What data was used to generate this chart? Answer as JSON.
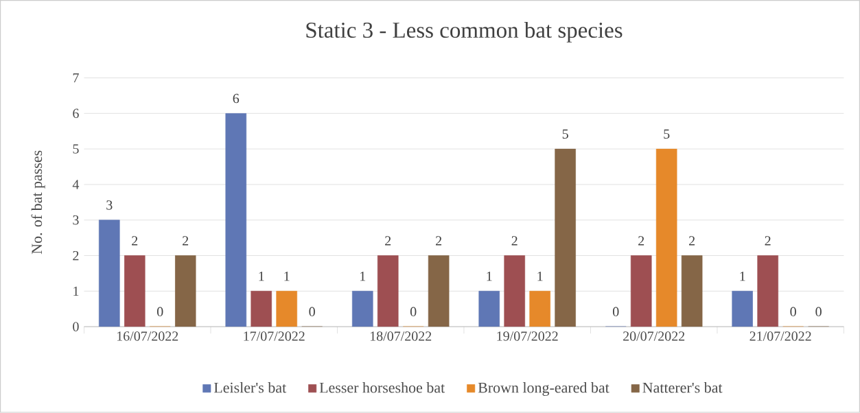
{
  "chart_data": {
    "type": "bar",
    "title": "Static 3 - Less common bat species",
    "ylabel": "No. of bat passes",
    "categories": [
      "16/07/2022",
      "17/07/2022",
      "18/07/2022",
      "19/07/2022",
      "20/07/2022",
      "21/07/2022"
    ],
    "series": [
      {
        "name": "Leisler's bat",
        "color": "#5f77b5",
        "values": [
          3,
          6,
          1,
          1,
          0,
          1
        ]
      },
      {
        "name": "Lesser horseshoe bat",
        "color": "#9e4f52",
        "values": [
          2,
          1,
          2,
          2,
          2,
          2
        ]
      },
      {
        "name": "Brown long-eared bat",
        "color": "#e6892a",
        "values": [
          0,
          1,
          0,
          1,
          5,
          0
        ]
      },
      {
        "name": "Natterer's bat",
        "color": "#856647",
        "values": [
          2,
          0,
          2,
          5,
          2,
          0
        ]
      }
    ],
    "ylim": [
      0,
      7
    ],
    "yticks": [
      0,
      1,
      2,
      3,
      4,
      5,
      6,
      7
    ],
    "grid": "y",
    "legend": "bottom",
    "data_labels": true
  }
}
